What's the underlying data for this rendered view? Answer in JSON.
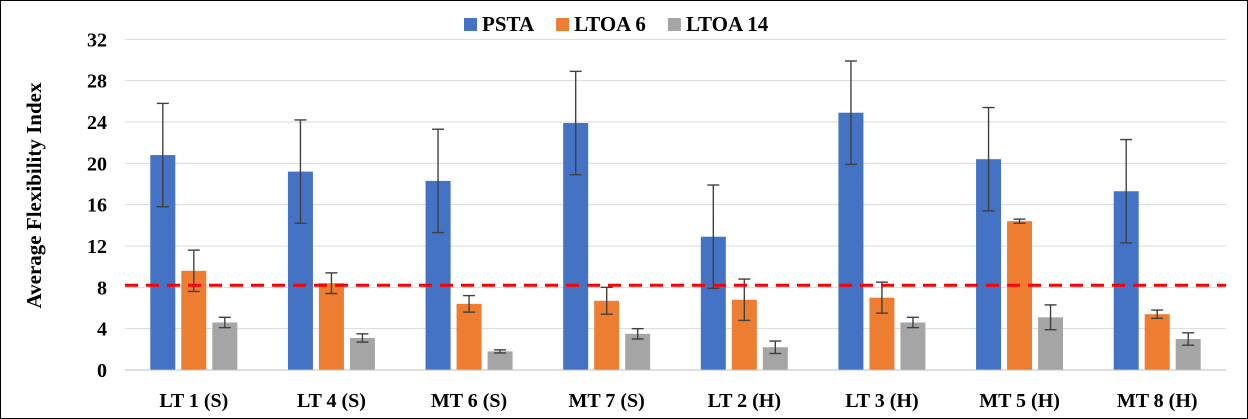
{
  "chart_data": {
    "type": "bar",
    "title": "",
    "xlabel": "",
    "ylabel": "Average Flexibility Index",
    "categories": [
      "LT 1 (S)",
      "LT 4 (S)",
      "MT 6 (S)",
      "MT 7 (S)",
      "LT 2 (H)",
      "LT 3 (H)",
      "MT 5 (H)",
      "MT 8 (H)"
    ],
    "series": [
      {
        "name": "PSTA",
        "color": "#4472C4",
        "values": [
          20.8,
          19.2,
          18.3,
          23.9,
          12.9,
          24.9,
          20.4,
          17.3
        ],
        "error": [
          5.0,
          5.0,
          5.0,
          5.0,
          5.0,
          5.0,
          5.0,
          5.0
        ]
      },
      {
        "name": "LTOA 6",
        "color": "#ED7D31",
        "values": [
          9.6,
          8.4,
          6.4,
          6.7,
          6.8,
          7.0,
          14.4,
          5.4
        ],
        "error": [
          2.0,
          1.0,
          0.8,
          1.3,
          2.0,
          1.5,
          0.2,
          0.4
        ]
      },
      {
        "name": "LTOA 14",
        "color": "#A5A5A5",
        "values": [
          4.6,
          3.1,
          1.8,
          3.5,
          2.2,
          4.6,
          5.1,
          3.0
        ],
        "error": [
          0.5,
          0.4,
          0.15,
          0.5,
          0.6,
          0.5,
          1.2,
          0.6
        ]
      }
    ],
    "yticks": [
      0,
      4,
      8,
      12,
      16,
      20,
      24,
      28,
      32
    ],
    "ylim": [
      0,
      33
    ],
    "threshold": {
      "value": 8.2,
      "color": "#FF0000",
      "style": "dashed"
    },
    "grid": true,
    "legend_position": "top-center"
  }
}
